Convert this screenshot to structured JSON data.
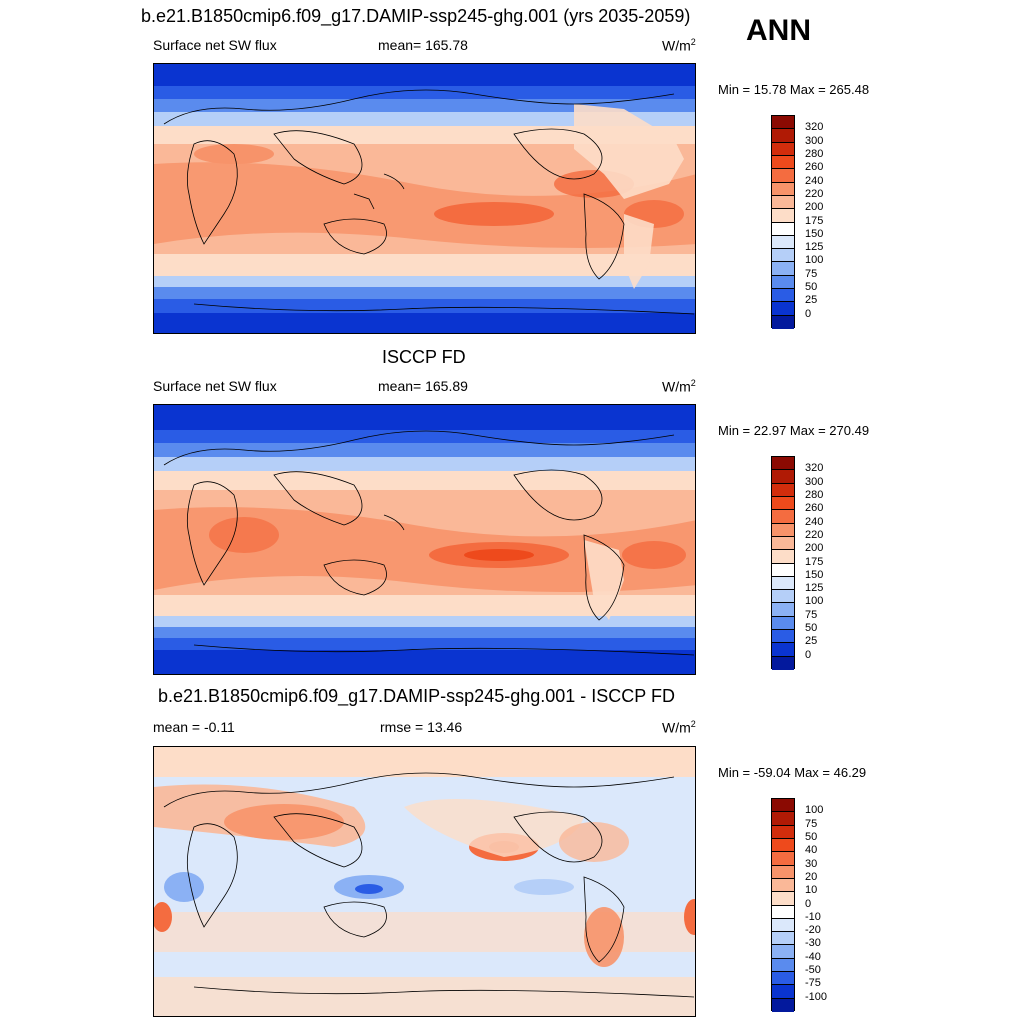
{
  "header": {
    "case_title": "b.e21.B1850cmip6.f09_g17.DAMIP-ssp245-ghg.001 (yrs 2035-2059)",
    "season": "ANN"
  },
  "panel1": {
    "variable": "Surface net SW flux",
    "stat": "mean= 165.78",
    "units": "W/m",
    "units_sup": "2",
    "minmax": "Min =  15.78 Max = 265.48"
  },
  "panel2": {
    "title": "ISCCP FD",
    "variable": "Surface net SW flux",
    "stat": "mean= 165.89",
    "units": "W/m",
    "units_sup": "2",
    "minmax": "Min =  22.97 Max = 270.49"
  },
  "panel3": {
    "title": "b.e21.B1850cmip6.f09_g17.DAMIP-ssp245-ghg.001 - ISCCP FD",
    "stat_left": "mean =  -0.11",
    "stat_mid": "rmse =  13.46",
    "units": "W/m",
    "units_sup": "2",
    "minmax": "Min = -59.04 Max =  46.29"
  },
  "colorbar_abs": {
    "labels": [
      "320",
      "300",
      "280",
      "260",
      "240",
      "220",
      "200",
      "175",
      "150",
      "125",
      "100",
      "75",
      "50",
      "25",
      "0"
    ],
    "colors": [
      "#8b0a02",
      "#b01a05",
      "#d22d0c",
      "#ee4a1c",
      "#f46c40",
      "#f7936a",
      "#fab898",
      "#fdddc8",
      "#ffffff",
      "#dbe8fb",
      "#b5cff8",
      "#8bb1f4",
      "#5a8bee",
      "#2a5ce5",
      "#0a34d0",
      "#03199d"
    ]
  },
  "colorbar_diff": {
    "labels": [
      "100",
      "75",
      "50",
      "40",
      "30",
      "20",
      "10",
      "0",
      "-10",
      "-20",
      "-30",
      "-40",
      "-50",
      "-75",
      "-100"
    ],
    "colors": [
      "#8b0a02",
      "#b01a05",
      "#d22d0c",
      "#ee4a1c",
      "#f46c40",
      "#f7936a",
      "#fab898",
      "#fdddc8",
      "#ffffff",
      "#dbe8fb",
      "#b5cff8",
      "#8bb1f4",
      "#5a8bee",
      "#2a5ce5",
      "#0a34d0",
      "#03199d"
    ]
  }
}
